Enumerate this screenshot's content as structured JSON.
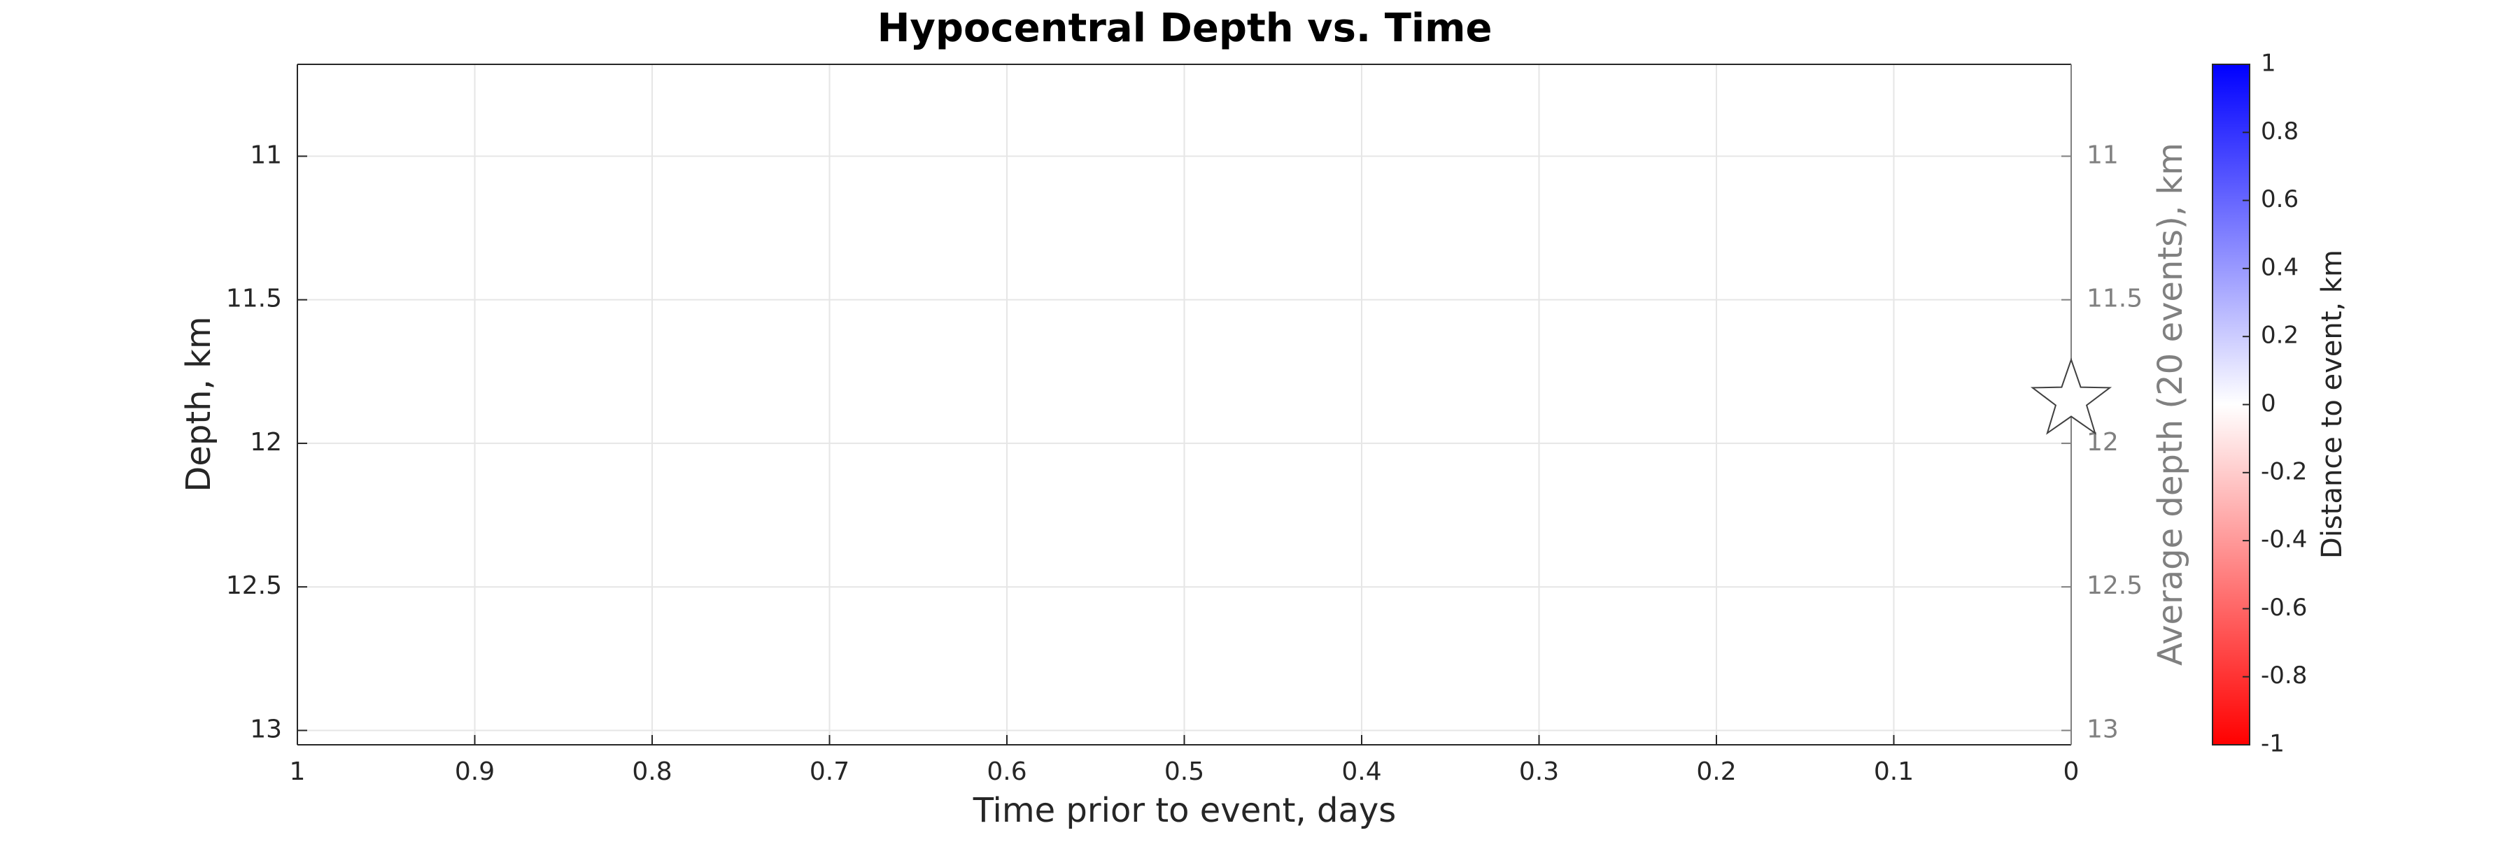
{
  "chart_data": {
    "type": "scatter",
    "title": "Hypocentral Depth vs. Time",
    "x_label": "Time prior to event, days",
    "y_label": "Depth, km",
    "y2_label": "Average depth (20 events), km",
    "x": [
      0
    ],
    "values": [
      11.85
    ],
    "marker": "star",
    "marker_face_color": "#ffffff",
    "marker_edge_color": "#404040",
    "xlim": [
      1,
      0
    ],
    "xticks": [
      1,
      0.9,
      0.8,
      0.7,
      0.6,
      0.5,
      0.4,
      0.3,
      0.2,
      0.1,
      0
    ],
    "ylim": [
      13.05,
      10.68
    ],
    "yticks": [
      11,
      11.5,
      12,
      12.5,
      13
    ],
    "y2lim": [
      13.05,
      10.68
    ],
    "y2ticks": [
      11,
      11.5,
      12,
      12.5,
      13
    ],
    "y2_color": "#808080",
    "grid": true,
    "colorbar": {
      "label": "Distance to event, km",
      "lim": [
        -1,
        1
      ],
      "ticks": [
        1,
        0.8,
        0.6,
        0.4,
        0.2,
        0,
        -0.2,
        -0.4,
        -0.6,
        -0.8,
        -1
      ],
      "colors": [
        "#ff0000",
        "#ffffff",
        "#0000ff"
      ]
    }
  }
}
